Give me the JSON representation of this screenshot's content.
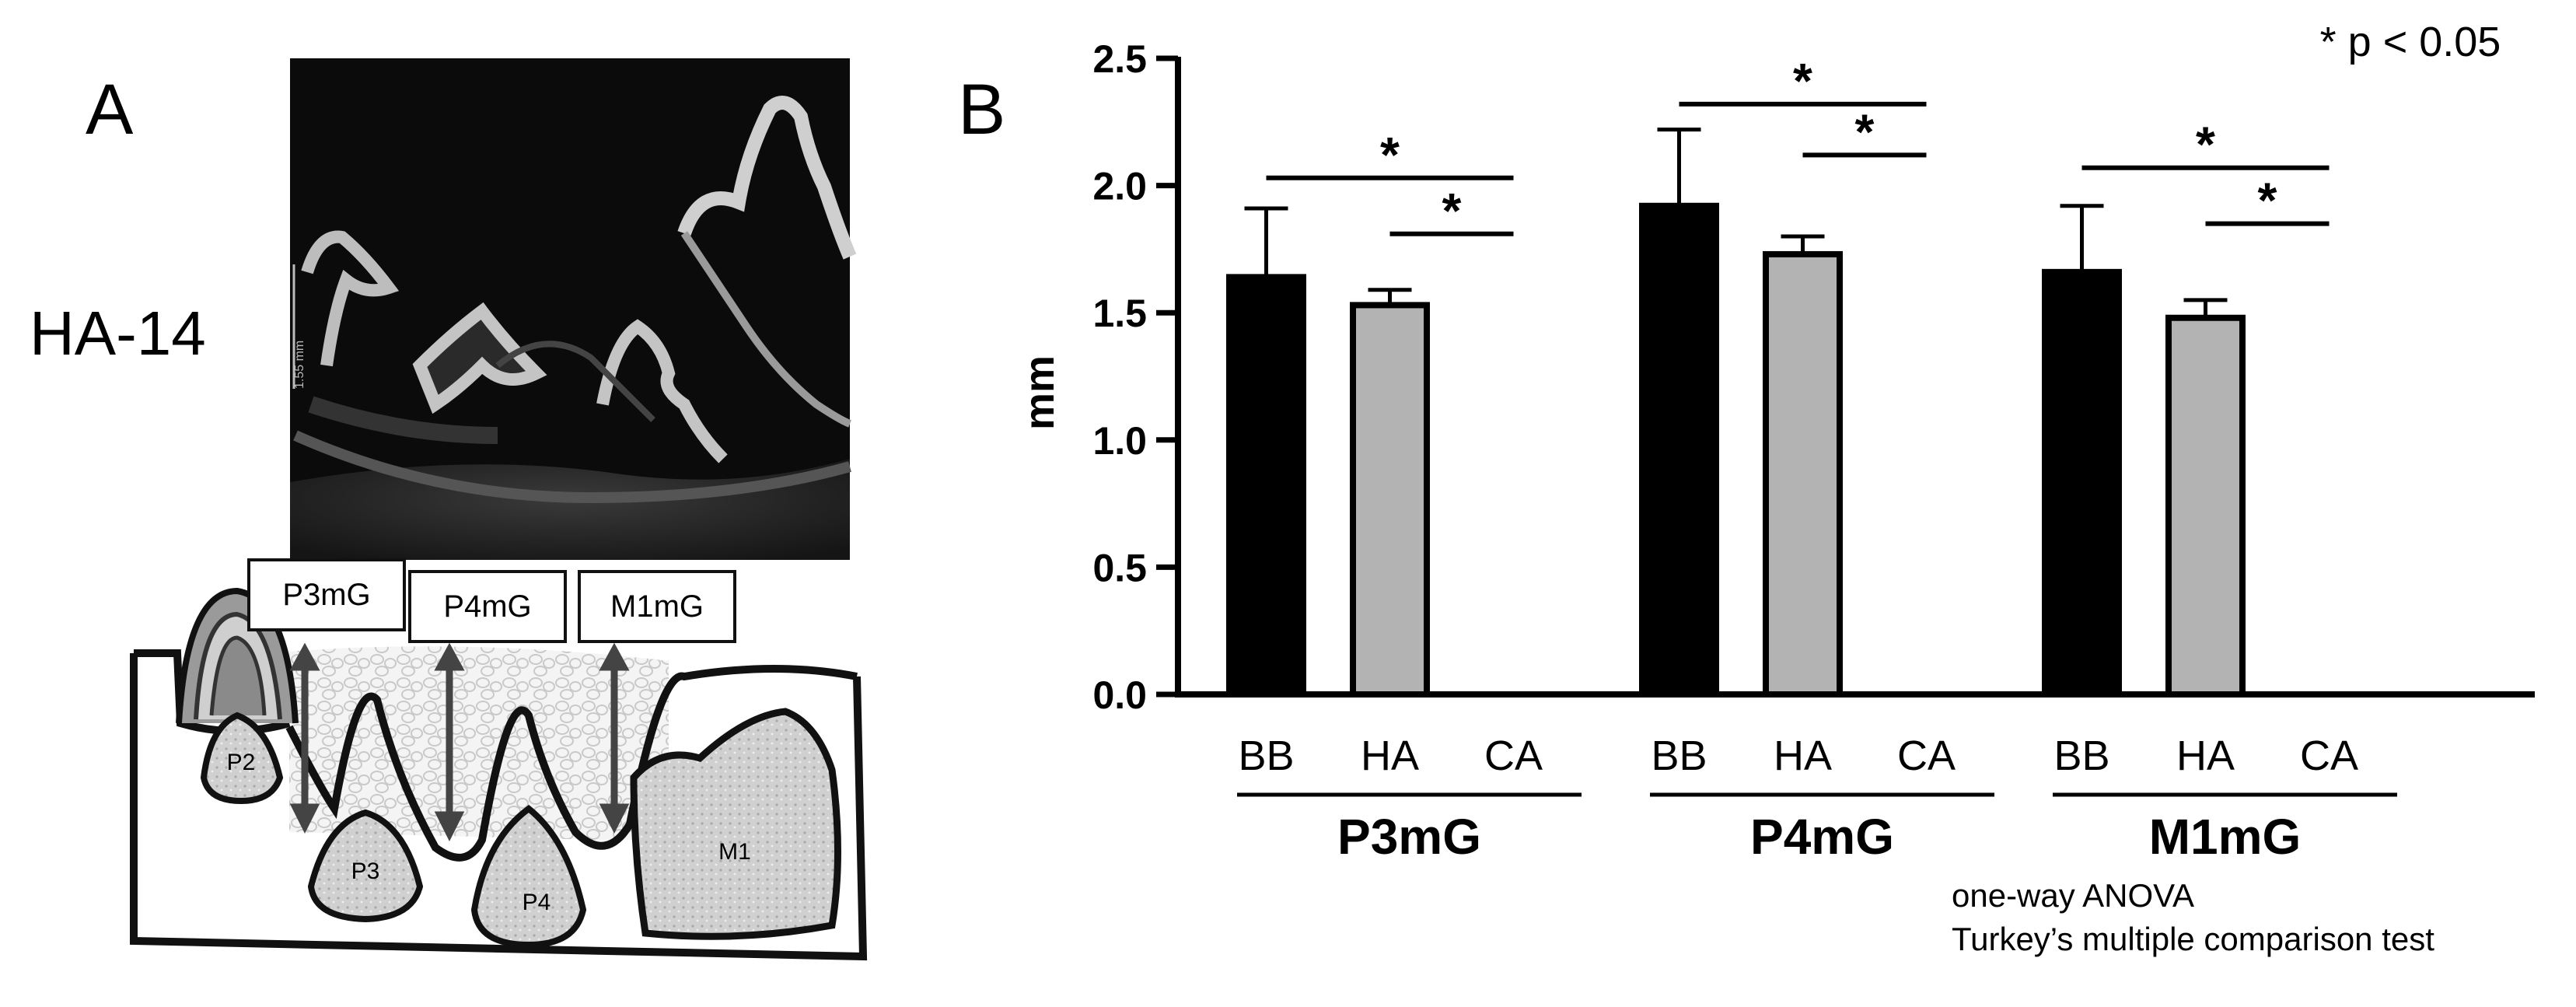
{
  "panel_a": {
    "letter": "A",
    "sample_label": "HA-14",
    "scale_text": "1.55 mm",
    "region_labels": [
      "P3mG",
      "P4mG",
      "M1mG"
    ],
    "tooth_labels": [
      "P2",
      "P3",
      "P4",
      "M1"
    ]
  },
  "chart_data": {
    "type": "bar",
    "panel_letter": "B",
    "title": "",
    "ylabel": "mm",
    "xlabel": "",
    "ylim": [
      0,
      2.5
    ],
    "yticks": [
      "0.0",
      "0.5",
      "1.0",
      "1.5",
      "2.0",
      "2.5"
    ],
    "groups": [
      "P3mG",
      "P4mG",
      "M1mG"
    ],
    "categories": [
      "BB",
      "HA",
      "CA"
    ],
    "bar_colors": {
      "BB": "#000000",
      "HA": "#b3b3b3",
      "CA": "#ffffff"
    },
    "values": [
      {
        "group": "P3mG",
        "BB": 1.64,
        "HA": 1.53,
        "CA": 0.0,
        "BB_err": 0.27,
        "HA_err": 0.06
      },
      {
        "group": "P4mG",
        "BB": 1.92,
        "HA": 1.73,
        "CA": 0.0,
        "BB_err": 0.3,
        "HA_err": 0.07
      },
      {
        "group": "M1mG",
        "BB": 1.66,
        "HA": 1.48,
        "CA": 0.0,
        "BB_err": 0.26,
        "HA_err": 0.07
      }
    ],
    "significance": [
      {
        "group": "P3mG",
        "from": "BB",
        "to": "CA",
        "y": 2.03,
        "mark": "*"
      },
      {
        "group": "P3mG",
        "from": "HA",
        "to": "CA",
        "y": 1.81,
        "mark": "*"
      },
      {
        "group": "P4mG",
        "from": "BB",
        "to": "CA",
        "y": 2.32,
        "mark": "*"
      },
      {
        "group": "P4mG",
        "from": "HA",
        "to": "CA",
        "y": 2.12,
        "mark": "*"
      },
      {
        "group": "M1mG",
        "from": "BB",
        "to": "CA",
        "y": 2.07,
        "mark": "*"
      },
      {
        "group": "M1mG",
        "from": "HA",
        "to": "CA",
        "y": 1.85,
        "mark": "*"
      }
    ],
    "legend_note": "* p < 0.05",
    "methods_note": [
      "one-way ANOVA",
      "Turkey’s multiple comparison test"
    ]
  }
}
